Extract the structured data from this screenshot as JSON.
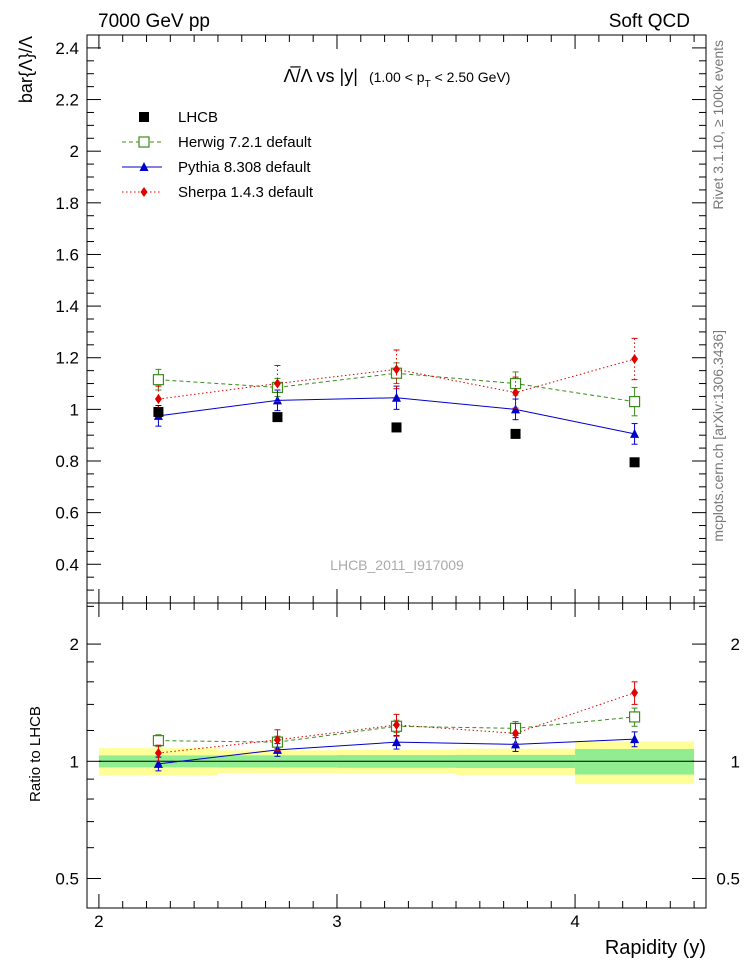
{
  "header": {
    "left": "7000 GeV pp",
    "right": "Soft QCD"
  },
  "side": {
    "rivet": "Rivet 3.1.10, ≥ 100k events",
    "source": "mcplots.cern.ch [arXiv:1306.3436]"
  },
  "chart_data": {
    "type": "line",
    "title_main": "Λ̅/Λ vs |y|",
    "title_sub": "(1.00 < p",
    "title_sub_T": "T",
    "title_sub_end": " < 2.50 GeV)",
    "watermark": "LHCB_2011_I917009",
    "ylabel": "bar{Λ}/Λ",
    "ratio_ylabel": "Ratio to LHCB",
    "xlabel": "Rapidity (y)",
    "xlim": [
      1.95,
      4.55
    ],
    "ylim": [
      0.25,
      2.45
    ],
    "ratio_ylim": [
      0.42,
      2.55
    ],
    "x_ticks": [
      "2",
      "3",
      "4"
    ],
    "y_ticks": [
      "0.4",
      "0.6",
      "0.8",
      "1",
      "1.2",
      "1.4",
      "1.6",
      "1.8",
      "2",
      "2.2",
      "2.4"
    ],
    "ratio_ticks": [
      "0.5",
      "1",
      "2"
    ],
    "bins": [
      [
        2.0,
        2.5
      ],
      [
        2.5,
        3.0
      ],
      [
        3.0,
        3.5
      ],
      [
        3.5,
        4.0
      ],
      [
        4.0,
        4.5
      ]
    ],
    "x": [
      2.25,
      2.75,
      3.25,
      3.75,
      4.25
    ],
    "data": {
      "name": "LHCB",
      "values": [
        0.99,
        0.97,
        0.93,
        0.905,
        0.795
      ],
      "band_inner": [
        0.035,
        0.035,
        0.035,
        0.035,
        0.06
      ],
      "band_outer": [
        0.08,
        0.065,
        0.065,
        0.07,
        0.1
      ]
    },
    "series": [
      {
        "name": "Herwig 7.2.1 default",
        "color": "#3c8c1c",
        "marker": "open-square",
        "dash": "4,3",
        "values": [
          1.115,
          1.085,
          1.14,
          1.1,
          1.03
        ],
        "errors": [
          0.04,
          0.035,
          0.04,
          0.045,
          0.055
        ],
        "ratio": [
          1.13,
          1.12,
          1.23,
          1.215,
          1.3
        ],
        "ratio_errors": [
          0.04,
          0.04,
          0.045,
          0.05,
          0.07
        ]
      },
      {
        "name": "Pythia 8.308 default",
        "color": "#0000cc",
        "marker": "triangle",
        "dash": "",
        "values": [
          0.975,
          1.035,
          1.045,
          1.0,
          0.905
        ],
        "errors": [
          0.04,
          0.04,
          0.045,
          0.04,
          0.04
        ],
        "ratio": [
          0.985,
          1.07,
          1.12,
          1.105,
          1.14
        ],
        "ratio_errors": [
          0.04,
          0.04,
          0.045,
          0.045,
          0.05
        ]
      },
      {
        "name": "Sherpa 1.4.3 default",
        "color": "#e00000",
        "marker": "diamond",
        "dash": "1.5,2.5",
        "values": [
          1.04,
          1.1,
          1.155,
          1.065,
          1.195
        ],
        "errors": [
          0.05,
          0.07,
          0.075,
          0.06,
          0.08
        ],
        "ratio": [
          1.05,
          1.135,
          1.24,
          1.18,
          1.5
        ],
        "ratio_errors": [
          0.05,
          0.07,
          0.08,
          0.07,
          0.1
        ]
      }
    ]
  }
}
